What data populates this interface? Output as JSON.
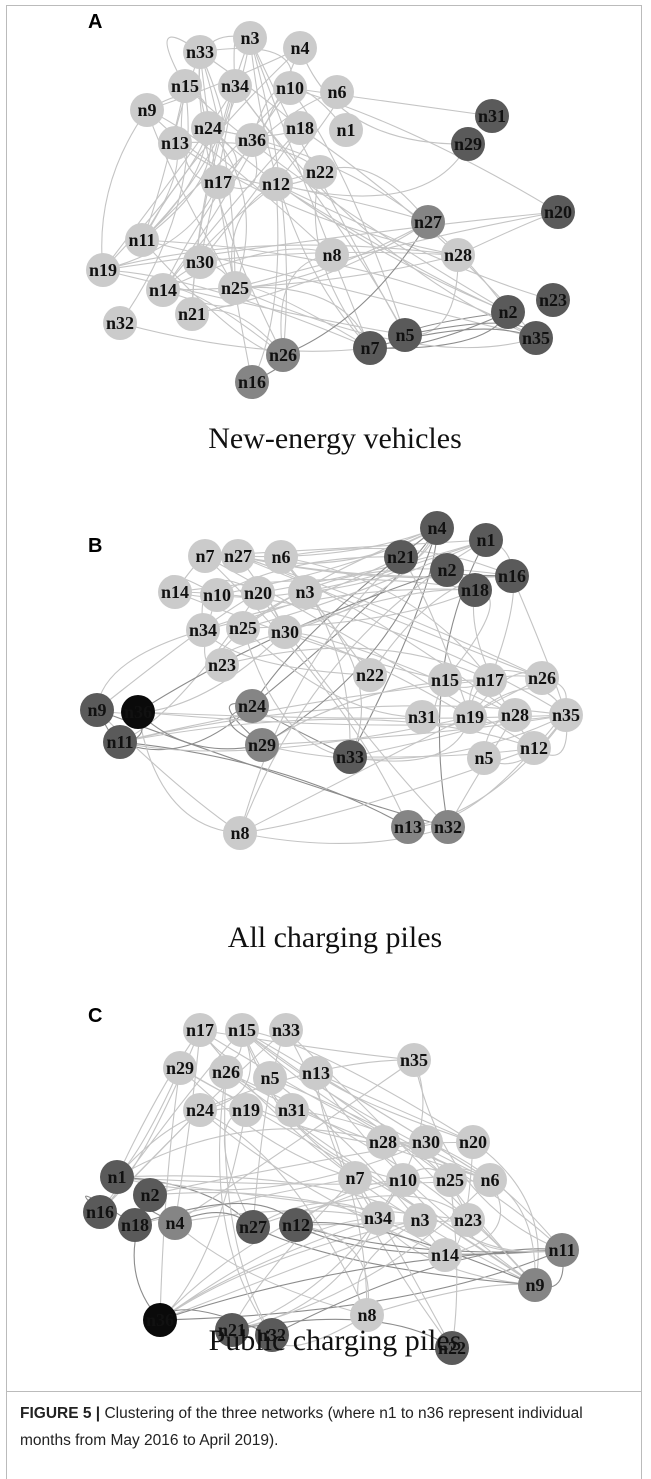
{
  "panels": [
    {
      "label": "A",
      "title": "New-energy vehicles",
      "nodes": [
        "n3",
        "n4",
        "n33",
        "n15",
        "n34",
        "n10",
        "n6",
        "n9",
        "n24",
        "n18",
        "n1",
        "n36",
        "n13",
        "n22",
        "n17",
        "n12",
        "n31",
        "n29",
        "n20",
        "n27",
        "n28",
        "n8",
        "n11",
        "n30",
        "n19",
        "n14",
        "n25",
        "n21",
        "n32",
        "n2",
        "n23",
        "n35",
        "n7",
        "n5",
        "n26",
        "n16"
      ]
    },
    {
      "label": "B",
      "title": "All charging piles",
      "nodes": [
        "n4",
        "n1",
        "n21",
        "n2",
        "n16",
        "n18",
        "n7",
        "n27",
        "n6",
        "n14",
        "n10",
        "n20",
        "n3",
        "n34",
        "n25",
        "n30",
        "n23",
        "n22",
        "n15",
        "n17",
        "n26",
        "n31",
        "n19",
        "n28",
        "n35",
        "n9",
        "n36",
        "n11",
        "n24",
        "n29",
        "n33",
        "n5",
        "n12",
        "n8",
        "n13",
        "n32"
      ]
    },
    {
      "label": "C",
      "title": "Public charging piles",
      "nodes": [
        "n17",
        "n15",
        "n33",
        "n35",
        "n29",
        "n26",
        "n5",
        "n13",
        "n24",
        "n19",
        "n31",
        "n28",
        "n30",
        "n20",
        "n7",
        "n10",
        "n25",
        "n6",
        "n1",
        "n2",
        "n16",
        "n18",
        "n4",
        "n27",
        "n12",
        "n34",
        "n3",
        "n23",
        "n14",
        "n11",
        "n9",
        "n36",
        "n8",
        "n21",
        "n32",
        "n22"
      ]
    }
  ],
  "caption": {
    "label": "FIGURE 5 |",
    "text": "Clustering of the three networks (where n1 to n36 represent individual months from May 2016 to April 2019)."
  }
}
